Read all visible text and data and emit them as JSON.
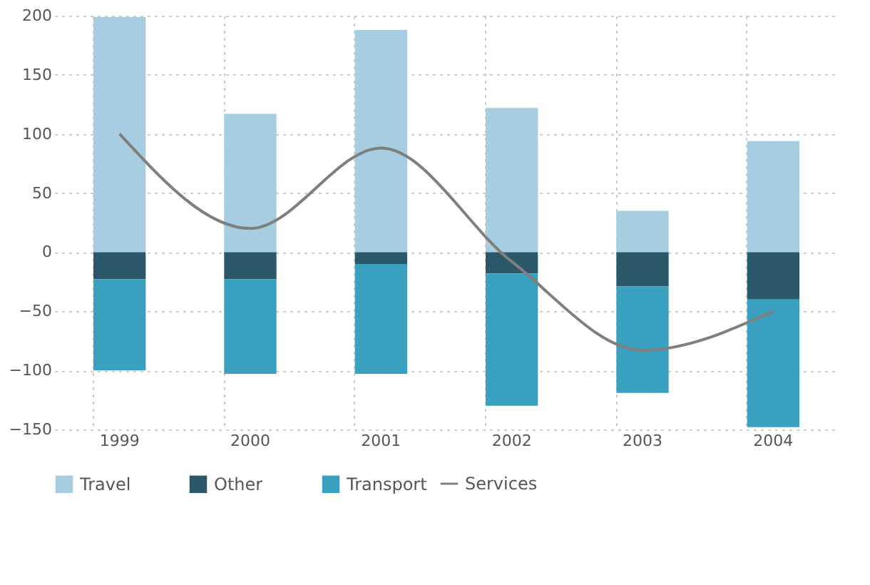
{
  "chart_data": {
    "type": "bar",
    "stacked": true,
    "categories": [
      "1999",
      "2000",
      "2001",
      "2002",
      "2003",
      "2004"
    ],
    "series": [
      {
        "name": "Travel",
        "color": "#a6cde0",
        "values": [
          199,
          117,
          188,
          122,
          35,
          94
        ]
      },
      {
        "name": "Other",
        "color": "#2b5868",
        "values": [
          -23,
          -23,
          -10,
          -18,
          -29,
          -40
        ]
      },
      {
        "name": "Transport",
        "color": "#3aa0c0",
        "values": [
          -77,
          -80,
          -93,
          -112,
          -90,
          -108
        ]
      },
      {
        "name": "Services",
        "type": "line",
        "color": "#7f7f7f",
        "values": [
          100,
          20,
          88,
          -8,
          -83,
          -50
        ]
      }
    ],
    "ylim": [
      -150,
      200
    ],
    "yticks": [
      -150,
      -100,
      -50,
      0,
      50,
      100,
      150,
      200
    ],
    "grid": true,
    "legend": "bottom"
  }
}
